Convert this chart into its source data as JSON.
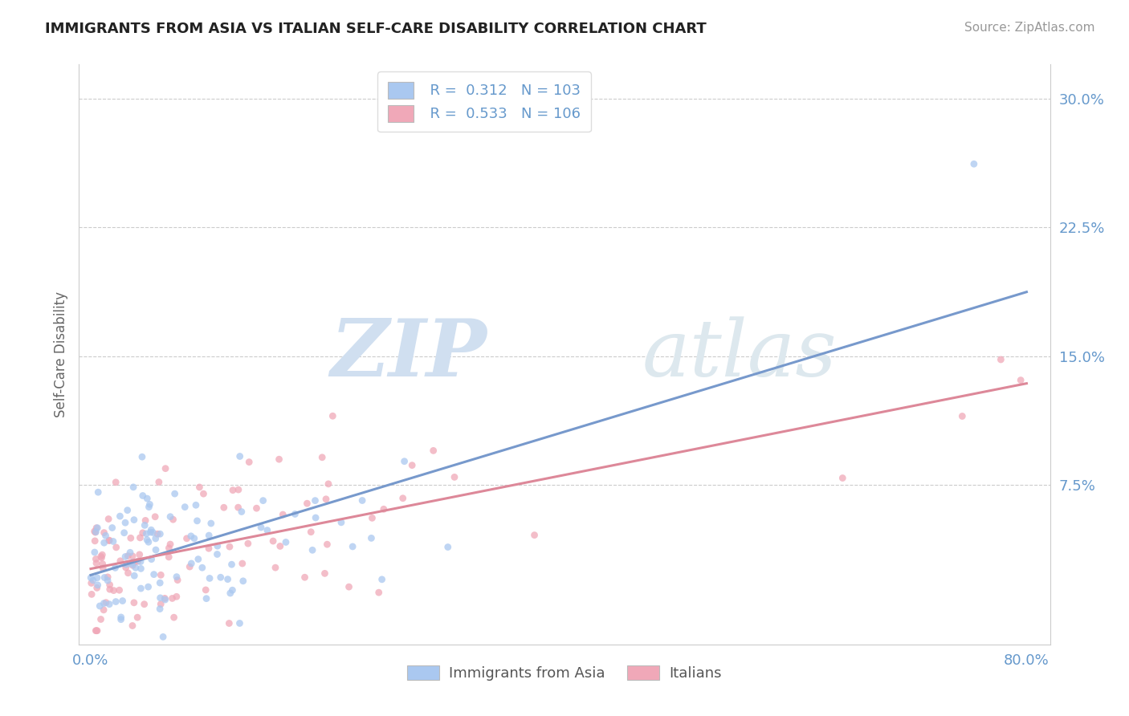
{
  "title": "IMMIGRANTS FROM ASIA VS ITALIAN SELF-CARE DISABILITY CORRELATION CHART",
  "source_text": "Source: ZipAtlas.com",
  "ylabel": "Self-Care Disability",
  "watermark_zip": "ZIP",
  "watermark_atlas": "atlas",
  "xlim": [
    -0.01,
    0.82
  ],
  "ylim": [
    -0.018,
    0.32
  ],
  "yticks": [
    0.075,
    0.15,
    0.225,
    0.3
  ],
  "ytick_labels": [
    "7.5%",
    "15.0%",
    "22.5%",
    "30.0%"
  ],
  "xtick_labels": [
    "0.0%",
    "80.0%"
  ],
  "xtick_positions": [
    0.0,
    0.8
  ],
  "legend_r1": "0.312",
  "legend_n1": "103",
  "legend_r2": "0.533",
  "legend_n2": "106",
  "legend_label1": "Immigrants from Asia",
  "legend_label2": "Italians",
  "color_asia": "#aac8f0",
  "color_italian": "#f0a8b8",
  "color_line_asia": "#7799cc",
  "color_line_italian": "#dd8899",
  "color_title": "#222222",
  "color_tick": "#6699cc",
  "grid_color": "#cccccc",
  "background_color": "#ffffff",
  "seed": 7,
  "n_asia": 103,
  "n_italian": 106,
  "r_asia": 0.312,
  "r_italian": 0.533,
  "scatter_size": 40,
  "scatter_alpha": 0.75
}
